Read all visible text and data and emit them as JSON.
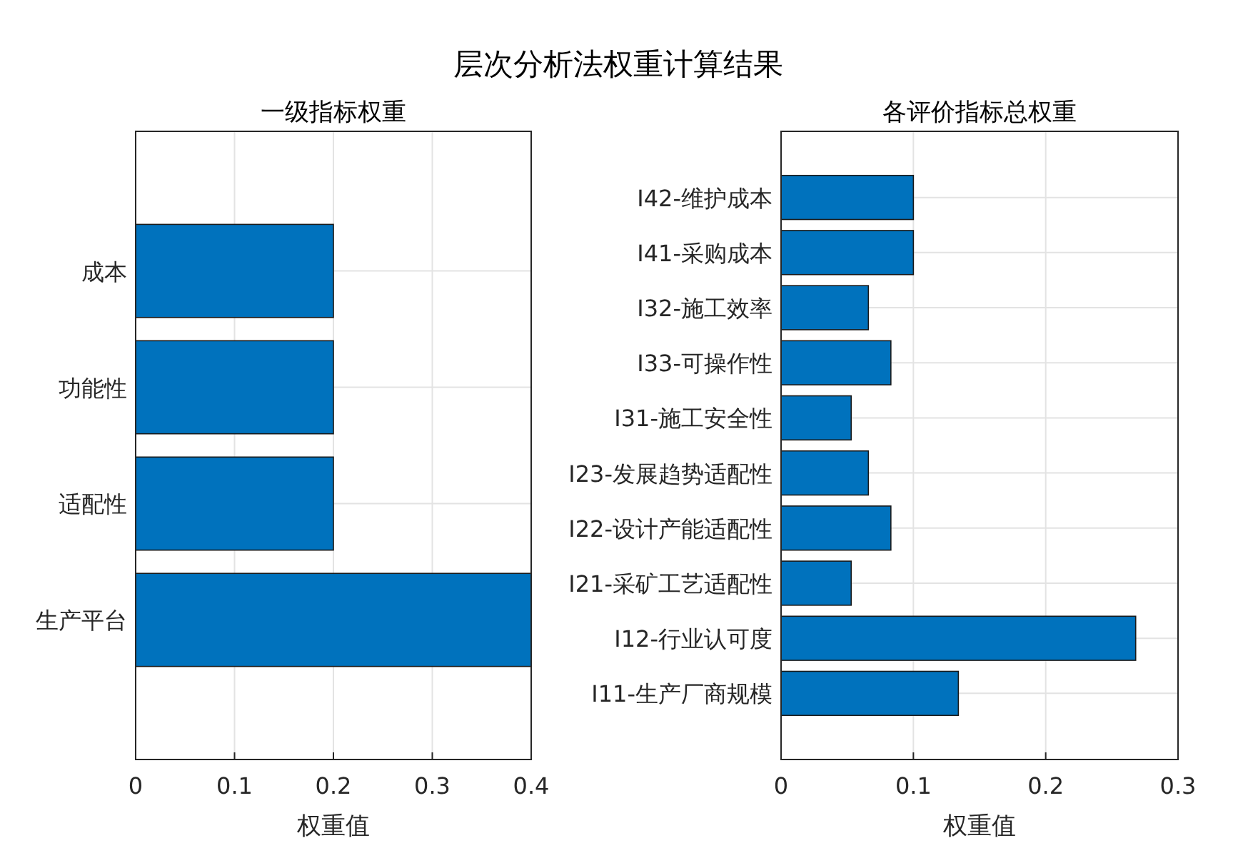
{
  "chart_data": [
    {
      "type": "bar",
      "orientation": "horizontal",
      "title": "一级指标权重",
      "xlabel": "权重值",
      "categories": [
        "成本",
        "功能性",
        "适配性",
        "生产平台"
      ],
      "values": [
        0.2,
        0.2,
        0.2,
        0.4
      ],
      "color": "#0072bd",
      "xlim": [
        0,
        0.4
      ],
      "xticks": [
        0,
        0.1,
        0.2,
        0.3,
        0.4
      ],
      "grid": true,
      "annotations": [
        "层次分析法权重计算结果"
      ]
    },
    {
      "type": "bar",
      "orientation": "horizontal",
      "title": "各评价指标总权重",
      "xlabel": "权重值",
      "categories": [
        "I42-维护成本",
        "I41-采购成本",
        "I32-施工效率",
        "I33-可操作性",
        "I31-施工安全性",
        "I23-发展趋势适配性",
        "I22-设计产能适配性",
        "I21-采矿工艺适配性",
        "I12-行业认可度",
        "I11-生产厂商规模"
      ],
      "values": [
        0.1,
        0.1,
        0.066,
        0.083,
        0.053,
        0.066,
        0.083,
        0.053,
        0.268,
        0.134
      ],
      "color": "#0072bd",
      "xlim": [
        0,
        0.3
      ],
      "xticks": [
        0,
        0.1,
        0.2,
        0.3
      ],
      "grid": true
    }
  ]
}
